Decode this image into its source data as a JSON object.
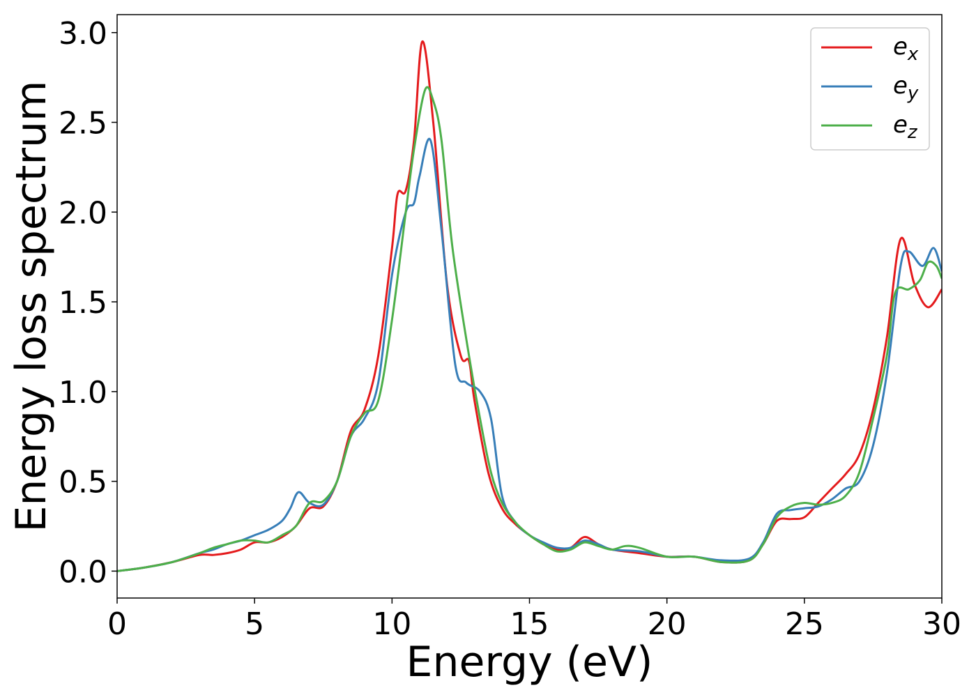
{
  "chart_data": {
    "type": "line",
    "title": "",
    "xlabel": "Energy (eV)",
    "ylabel": "Energy loss spectrum",
    "xlim": [
      0,
      30
    ],
    "ylim": [
      -0.15,
      3.1
    ],
    "xticks": [
      0,
      5,
      10,
      15,
      20,
      25,
      30
    ],
    "xtick_labels": [
      "0",
      "5",
      "10",
      "15",
      "20",
      "25",
      "30"
    ],
    "yticks": [
      0.0,
      0.5,
      1.0,
      1.5,
      2.0,
      2.5,
      3.0
    ],
    "ytick_labels": [
      "0.0",
      "0.5",
      "1.0",
      "1.5",
      "2.0",
      "2.5",
      "3.0"
    ],
    "grid": false,
    "legend_position": "top-right",
    "series": [
      {
        "name": "e_x",
        "legend_base": "e",
        "legend_sub": "x",
        "color": "#e41a1c",
        "x": [
          0,
          1,
          2,
          3,
          3.5,
          4,
          4.5,
          5,
          5.5,
          6,
          6.5,
          7,
          7.5,
          8,
          8.5,
          9,
          9.5,
          10,
          10.2,
          10.5,
          10.8,
          11.1,
          11.5,
          12,
          12.5,
          12.8,
          13,
          13.5,
          14,
          14.5,
          15,
          15.5,
          16,
          16.5,
          17,
          17.5,
          18,
          19,
          20,
          21,
          22,
          23,
          23.5,
          24,
          24.5,
          25,
          25.5,
          26,
          26.5,
          27,
          27.5,
          28,
          28.5,
          29,
          29.5,
          30
        ],
        "y": [
          0.0,
          0.02,
          0.05,
          0.09,
          0.09,
          0.1,
          0.12,
          0.16,
          0.16,
          0.19,
          0.25,
          0.35,
          0.36,
          0.5,
          0.78,
          0.9,
          1.2,
          1.8,
          2.1,
          2.12,
          2.4,
          2.95,
          2.5,
          1.6,
          1.2,
          1.17,
          0.95,
          0.55,
          0.35,
          0.26,
          0.2,
          0.15,
          0.12,
          0.13,
          0.19,
          0.15,
          0.12,
          0.1,
          0.08,
          0.08,
          0.05,
          0.06,
          0.15,
          0.28,
          0.29,
          0.3,
          0.38,
          0.46,
          0.54,
          0.65,
          0.9,
          1.3,
          1.85,
          1.6,
          1.47,
          1.57
        ]
      },
      {
        "name": "e_y",
        "legend_base": "e",
        "legend_sub": "y",
        "color": "#377eb8",
        "x": [
          0,
          1,
          2,
          3,
          3.5,
          4,
          4.5,
          5,
          5.5,
          6,
          6.3,
          6.6,
          7,
          7.5,
          8,
          8.5,
          9,
          9.5,
          10,
          10.5,
          10.8,
          11,
          11.4,
          11.8,
          12.3,
          12.7,
          13.2,
          13.6,
          14,
          14.5,
          15,
          15.5,
          16,
          16.5,
          17,
          17.5,
          18,
          19,
          20,
          20.5,
          21,
          22,
          23,
          23.5,
          24,
          24.5,
          25,
          25.5,
          26,
          26.5,
          27,
          27.5,
          28,
          28.5,
          28.8,
          29.3,
          29.7,
          30
        ],
        "y": [
          0.0,
          0.02,
          0.05,
          0.1,
          0.12,
          0.15,
          0.17,
          0.2,
          0.23,
          0.28,
          0.35,
          0.44,
          0.38,
          0.37,
          0.5,
          0.75,
          0.85,
          1.05,
          1.65,
          2.0,
          2.05,
          2.2,
          2.4,
          1.9,
          1.15,
          1.05,
          1.0,
          0.85,
          0.42,
          0.27,
          0.2,
          0.16,
          0.13,
          0.13,
          0.17,
          0.15,
          0.12,
          0.11,
          0.08,
          0.08,
          0.08,
          0.06,
          0.07,
          0.16,
          0.32,
          0.34,
          0.35,
          0.36,
          0.4,
          0.46,
          0.5,
          0.7,
          1.1,
          1.7,
          1.78,
          1.7,
          1.8,
          1.67
        ]
      },
      {
        "name": "e_z",
        "legend_base": "e",
        "legend_sub": "z",
        "color": "#4daf4a",
        "x": [
          0,
          1,
          2,
          3,
          3.5,
          4,
          4.5,
          5,
          5.5,
          6,
          6.5,
          7,
          7.5,
          8,
          8.5,
          9,
          9.5,
          10,
          10.5,
          10.8,
          11.2,
          11.5,
          11.8,
          12.2,
          12.8,
          13.2,
          13.6,
          14,
          14.5,
          15,
          15.5,
          16,
          16.5,
          17,
          17.5,
          18,
          18.5,
          19,
          20,
          21,
          22,
          23,
          23.5,
          24,
          24.5,
          25,
          25.5,
          26,
          26.5,
          27,
          27.5,
          28,
          28.3,
          28.8,
          29.2,
          29.5,
          29.8,
          30
        ],
        "y": [
          0.0,
          0.02,
          0.05,
          0.1,
          0.13,
          0.15,
          0.17,
          0.17,
          0.16,
          0.2,
          0.25,
          0.38,
          0.39,
          0.5,
          0.75,
          0.88,
          0.95,
          1.4,
          2.0,
          2.35,
          2.68,
          2.62,
          2.4,
          1.8,
          1.2,
          0.85,
          0.55,
          0.38,
          0.27,
          0.2,
          0.15,
          0.11,
          0.12,
          0.16,
          0.14,
          0.12,
          0.14,
          0.13,
          0.08,
          0.08,
          0.05,
          0.06,
          0.15,
          0.3,
          0.36,
          0.38,
          0.37,
          0.38,
          0.42,
          0.55,
          0.85,
          1.2,
          1.55,
          1.57,
          1.62,
          1.72,
          1.7,
          1.63
        ]
      }
    ]
  }
}
